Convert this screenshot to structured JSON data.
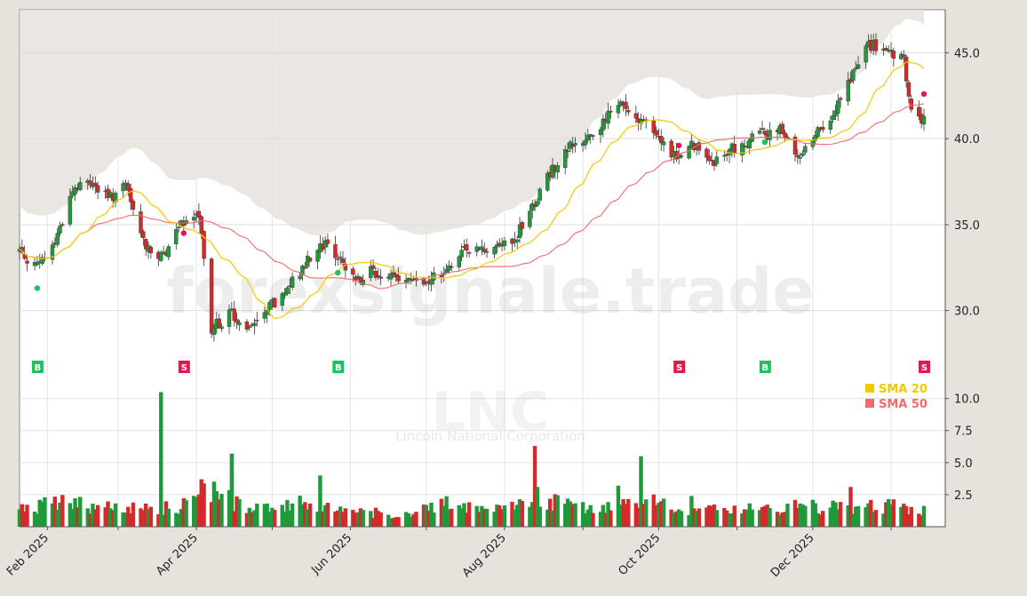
{
  "watermark": {
    "brand": "forexsignale.trade",
    "ticker": "LNC",
    "company": "Lincoln National Corporation"
  },
  "legend": [
    {
      "label": "SMA 20",
      "color": "#f5c800"
    },
    {
      "label": "SMA 50",
      "color": "#f26b6b"
    }
  ],
  "colors": {
    "up": "#1f9a3a",
    "down": "#d42a2a",
    "buy": "#1fbf63",
    "sell": "#e0194f",
    "background": "#e6e3dd"
  },
  "chart_data": {
    "type": "candlestick",
    "x_axis": {
      "type": "date",
      "range": [
        "2025-01-21",
        "2026-01-14"
      ],
      "tick_labels": [
        "Feb 2025",
        "Apr 2025",
        "Jun 2025",
        "Aug 2025",
        "Oct 2025",
        "Dec 2025"
      ]
    },
    "price_axis": {
      "range": [
        26.0,
        47.5
      ],
      "tick_labels": [
        "30.0",
        "35.0",
        "40.0",
        "45.0"
      ],
      "grid": true
    },
    "volume_axis": {
      "range": [
        0,
        11.5
      ],
      "tick_labels": [
        "2.5",
        "5.0",
        "7.5",
        "10.0"
      ],
      "grid": true
    },
    "price_anchors": [
      [
        "2025-01-21",
        33.5
      ],
      [
        "2025-01-28",
        32.5
      ],
      [
        "2025-02-04",
        34.0
      ],
      [
        "2025-02-11",
        37.0
      ],
      [
        "2025-02-18",
        37.5
      ],
      [
        "2025-02-25",
        36.5
      ],
      [
        "2025-03-04",
        37.2
      ],
      [
        "2025-03-11",
        34.0
      ],
      [
        "2025-03-18",
        33.0
      ],
      [
        "2025-03-25",
        35.0
      ],
      [
        "2025-04-01",
        35.5
      ],
      [
        "2025-04-03",
        34.8
      ],
      [
        "2025-04-07",
        29.0
      ],
      [
        "2025-04-15",
        29.8
      ],
      [
        "2025-04-22",
        28.8
      ],
      [
        "2025-04-29",
        30.0
      ],
      [
        "2025-05-06",
        31.0
      ],
      [
        "2025-05-13",
        32.5
      ],
      [
        "2025-05-20",
        34.0
      ],
      [
        "2025-05-27",
        33.2
      ],
      [
        "2025-06-03",
        31.8
      ],
      [
        "2025-06-10",
        32.3
      ],
      [
        "2025-06-17",
        31.8
      ],
      [
        "2025-06-24",
        32.0
      ],
      [
        "2025-07-01",
        31.6
      ],
      [
        "2025-07-08",
        32.3
      ],
      [
        "2025-07-15",
        33.6
      ],
      [
        "2025-07-22",
        33.5
      ],
      [
        "2025-07-29",
        33.8
      ],
      [
        "2025-08-05",
        34.2
      ],
      [
        "2025-08-12",
        36.0
      ],
      [
        "2025-08-19",
        38.0
      ],
      [
        "2025-08-26",
        39.5
      ],
      [
        "2025-09-02",
        40.0
      ],
      [
        "2025-09-09",
        41.0
      ],
      [
        "2025-09-16",
        42.0
      ],
      [
        "2025-09-23",
        41.0
      ],
      [
        "2025-09-30",
        40.5
      ],
      [
        "2025-10-07",
        39.0
      ],
      [
        "2025-10-14",
        39.6
      ],
      [
        "2025-10-21",
        38.5
      ],
      [
        "2025-10-28",
        39.2
      ],
      [
        "2025-11-04",
        39.8
      ],
      [
        "2025-11-11",
        40.2
      ],
      [
        "2025-11-18",
        40.5
      ],
      [
        "2025-11-25",
        39.0
      ],
      [
        "2025-12-02",
        40.2
      ],
      [
        "2025-12-09",
        41.5
      ],
      [
        "2025-12-16",
        43.5
      ],
      [
        "2025-12-23",
        45.5
      ],
      [
        "2025-12-30",
        45.0
      ],
      [
        "2026-01-06",
        44.5
      ],
      [
        "2026-01-09",
        41.5
      ],
      [
        "2026-01-14",
        41.0
      ]
    ],
    "volume_anchors": [
      [
        "2025-01-21",
        1.2
      ],
      [
        "2025-02-04",
        2.0
      ],
      [
        "2025-02-18",
        1.7
      ],
      [
        "2025-03-04",
        1.6
      ],
      [
        "2025-03-18",
        1.4
      ],
      [
        "2025-03-25",
        1.5
      ],
      [
        "2025-04-07",
        3.0
      ],
      [
        "2025-04-15",
        2.0
      ],
      [
        "2025-04-29",
        1.4
      ],
      [
        "2025-05-13",
        1.8
      ],
      [
        "2025-05-27",
        1.4
      ],
      [
        "2025-06-10",
        1.1
      ],
      [
        "2025-06-24",
        1.0
      ],
      [
        "2025-07-08",
        2.0
      ],
      [
        "2025-07-22",
        1.6
      ],
      [
        "2025-08-05",
        1.5
      ],
      [
        "2025-08-19",
        2.0
      ],
      [
        "2025-09-02",
        1.4
      ],
      [
        "2025-09-16",
        1.8
      ],
      [
        "2025-09-30",
        1.8
      ],
      [
        "2025-10-14",
        1.2
      ],
      [
        "2025-10-28",
        1.3
      ],
      [
        "2025-11-11",
        1.4
      ],
      [
        "2025-11-25",
        1.5
      ],
      [
        "2025-12-09",
        1.6
      ],
      [
        "2025-12-23",
        1.6
      ],
      [
        "2026-01-06",
        1.6
      ],
      [
        "2026-01-14",
        1.4
      ]
    ],
    "volume_spikes": [
      [
        "2025-03-18",
        10.5
      ],
      [
        "2025-04-03",
        3.7
      ],
      [
        "2025-04-15",
        5.7
      ],
      [
        "2025-05-20",
        4.0
      ],
      [
        "2025-08-13",
        6.3
      ],
      [
        "2025-08-14",
        3.1
      ],
      [
        "2025-09-24",
        5.5
      ],
      [
        "2025-09-15",
        3.2
      ],
      [
        "2025-12-16",
        3.1
      ],
      [
        "2025-10-14",
        2.4
      ]
    ],
    "series": [
      {
        "name": "SMA 20",
        "type": "line",
        "color": "#f5c800"
      },
      {
        "name": "SMA 50",
        "type": "line",
        "color": "#f26b6b"
      }
    ],
    "signals": [
      {
        "date": "2025-01-28",
        "type": "B",
        "price": 31.3
      },
      {
        "date": "2025-03-27",
        "type": "S",
        "price": 34.5
      },
      {
        "date": "2025-05-27",
        "type": "B",
        "price": 32.2
      },
      {
        "date": "2025-10-09",
        "type": "S",
        "price": 39.6
      },
      {
        "date": "2025-11-12",
        "type": "B",
        "price": 39.8
      },
      {
        "date": "2026-01-14",
        "type": "S",
        "price": 42.6
      }
    ]
  }
}
